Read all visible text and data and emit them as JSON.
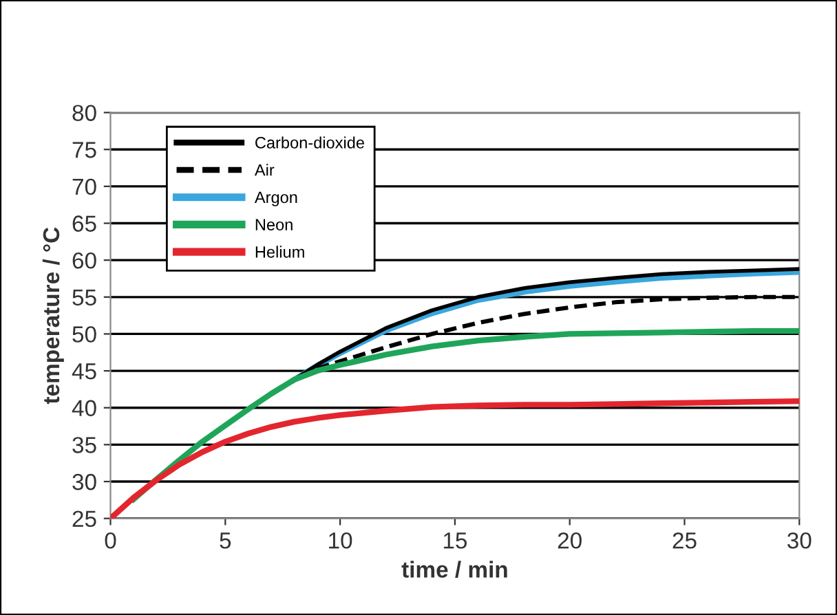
{
  "chart_data": {
    "type": "line",
    "xlabel": "time / min",
    "ylabel": "temperature / °C",
    "x": [
      0,
      1,
      2,
      3,
      4,
      5,
      6,
      7,
      8,
      9,
      10,
      12,
      14,
      16,
      18,
      20,
      22,
      24,
      26,
      28,
      30
    ],
    "series": [
      {
        "name": "Carbon-dioxide",
        "color": "#000000",
        "line_style": "solid",
        "values": [
          null,
          null,
          null,
          null,
          null,
          null,
          null,
          null,
          43.8,
          45.8,
          47.6,
          50.8,
          53.2,
          55.0,
          56.2,
          57.0,
          57.6,
          58.1,
          58.4,
          58.6,
          58.8
        ]
      },
      {
        "name": "Air",
        "color": "#000000",
        "line_style": "dashed",
        "values": [
          null,
          null,
          null,
          null,
          null,
          null,
          null,
          null,
          null,
          45.3,
          46.3,
          48.2,
          50.0,
          51.5,
          52.7,
          53.6,
          54.3,
          54.7,
          54.9,
          55.0,
          55.0
        ]
      },
      {
        "name": "Argon",
        "color": "#3aa6dd",
        "line_style": "solid",
        "values": [
          null,
          null,
          null,
          null,
          null,
          null,
          null,
          null,
          43.8,
          45.7,
          47.4,
          50.5,
          52.8,
          54.6,
          55.7,
          56.5,
          57.1,
          57.6,
          57.9,
          58.2,
          58.4
        ]
      },
      {
        "name": "Neon",
        "color": "#1fa55a",
        "line_style": "solid",
        "values": [
          null,
          27.6,
          30.3,
          32.9,
          35.4,
          37.6,
          39.8,
          41.9,
          43.8,
          45.0,
          45.8,
          47.2,
          48.3,
          49.1,
          49.6,
          50.0,
          50.1,
          50.2,
          50.3,
          50.4,
          50.4
        ]
      },
      {
        "name": "Helium",
        "color": "#e3262e",
        "line_style": "solid",
        "values": [
          25,
          27.8,
          30.2,
          32.3,
          34.0,
          35.4,
          36.5,
          37.4,
          38.1,
          38.6,
          39.0,
          39.6,
          40.1,
          40.3,
          40.4,
          40.4,
          40.5,
          40.6,
          40.7,
          40.8,
          40.9
        ]
      }
    ],
    "xlim": [
      0,
      30
    ],
    "xticks": [
      0,
      5,
      10,
      15,
      20,
      25,
      30
    ],
    "ylim": [
      25,
      80
    ],
    "yticks": [
      25,
      30,
      35,
      40,
      45,
      50,
      55,
      60,
      65,
      70,
      75,
      80
    ],
    "grid": "y",
    "legend": "top left",
    "marker": "none"
  }
}
